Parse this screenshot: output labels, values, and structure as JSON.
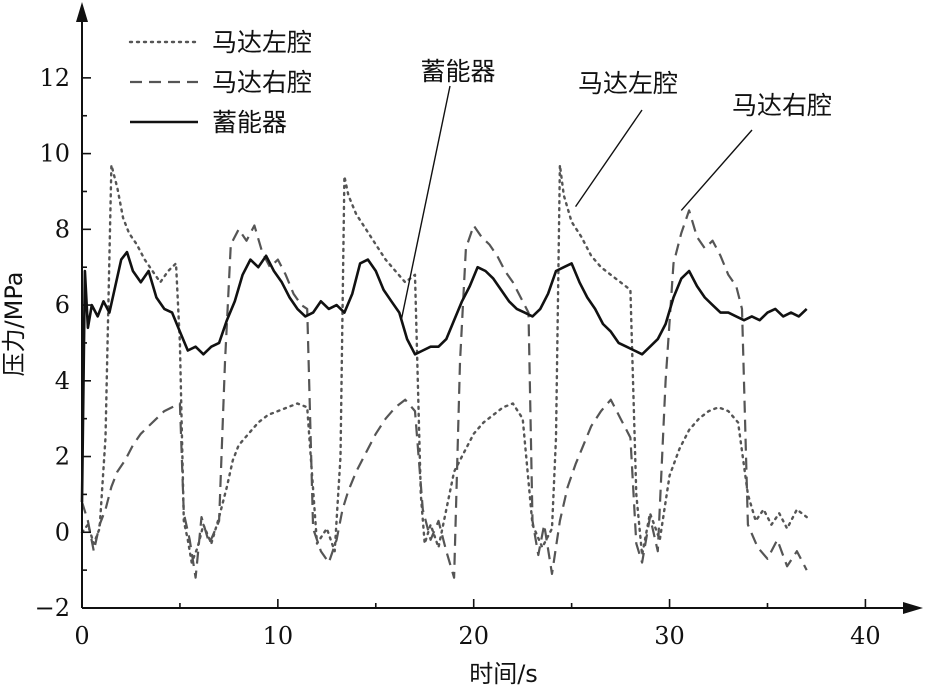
{
  "chart_data": {
    "type": "line",
    "xlabel": "时间/s",
    "ylabel": "压力/MPa",
    "xlim": [
      0,
      41
    ],
    "ylim": [
      -2,
      13
    ],
    "xticks": [
      0,
      10,
      20,
      30,
      40
    ],
    "yticks": [
      -2,
      0,
      2,
      4,
      6,
      8,
      10,
      12
    ],
    "legend_position": "top-left",
    "series": [
      {
        "name": "马达左腔",
        "style": "dotted",
        "color": "#555555",
        "x": [
          0,
          0.3,
          0.6,
          0.9,
          1.2,
          1.5,
          1.8,
          2.1,
          2.4,
          2.8,
          3.2,
          3.6,
          4.0,
          4.4,
          4.8,
          5.0,
          5.2,
          5.4,
          5.6,
          5.9,
          6.2,
          6.6,
          7.0,
          7.4,
          7.7,
          8.0,
          8.5,
          9.0,
          9.5,
          10.0,
          10.5,
          11.0,
          11.5,
          12.0,
          12.5,
          12.9,
          13.2,
          13.4,
          13.6,
          14.0,
          14.5,
          15.0,
          15.5,
          16.0,
          16.5,
          17.0,
          17.3,
          17.5,
          17.8,
          18.2,
          18.6,
          19.0,
          19.5,
          20.0,
          20.5,
          21.0,
          21.5,
          22.0,
          22.5,
          23.0,
          23.5,
          24.0,
          24.2,
          24.4,
          24.6,
          25.0,
          25.5,
          26.0,
          26.5,
          27.0,
          27.5,
          28.0,
          28.3,
          28.6,
          29.0,
          29.5,
          30.0,
          30.5,
          31.0,
          31.5,
          32.0,
          32.5,
          33.0,
          33.5,
          34.0,
          34.4,
          34.8,
          35.2,
          35.6,
          36.0,
          36.5,
          37.0
        ],
        "y": [
          0,
          0.2,
          -0.3,
          0.1,
          2.5,
          9.7,
          9.1,
          8.3,
          7.9,
          7.6,
          7.2,
          6.9,
          6.6,
          6.9,
          7.1,
          5.0,
          0.3,
          -0.2,
          -0.8,
          -0.4,
          0.2,
          -0.3,
          0.4,
          1.2,
          1.9,
          2.3,
          2.6,
          2.9,
          3.1,
          3.2,
          3.3,
          3.4,
          3.3,
          -0.3,
          0.1,
          -0.5,
          2.0,
          9.4,
          8.9,
          8.4,
          8.0,
          7.6,
          7.2,
          6.9,
          6.6,
          6.8,
          1.0,
          -0.3,
          0.2,
          -0.4,
          0.6,
          1.6,
          2.1,
          2.6,
          2.9,
          3.1,
          3.3,
          3.4,
          3.0,
          0.2,
          -0.4,
          0.1,
          2.5,
          9.7,
          8.9,
          8.2,
          7.8,
          7.3,
          7.0,
          6.8,
          6.6,
          6.4,
          1.0,
          -0.6,
          0.5,
          -0.2,
          1.5,
          2.2,
          2.7,
          3.0,
          3.2,
          3.3,
          3.2,
          2.9,
          1.0,
          0.3,
          0.6,
          0.2,
          0.5,
          0.1,
          0.6,
          0.4
        ]
      },
      {
        "name": "马达右腔",
        "style": "dashed",
        "color": "#555555",
        "x": [
          0,
          0.3,
          0.6,
          0.9,
          1.2,
          1.5,
          1.8,
          2.2,
          2.6,
          3.0,
          3.4,
          3.8,
          4.2,
          4.6,
          5.0,
          5.2,
          5.5,
          5.8,
          6.1,
          6.5,
          7.0,
          7.3,
          7.6,
          8.0,
          8.4,
          8.8,
          9.2,
          9.6,
          10.0,
          10.4,
          10.8,
          11.2,
          11.5,
          11.8,
          12.2,
          12.6,
          13.0,
          13.3,
          13.6,
          14.0,
          14.5,
          15.0,
          15.5,
          16.0,
          16.5,
          17.0,
          17.4,
          17.8,
          18.2,
          18.6,
          19.0,
          19.3,
          19.6,
          20.0,
          20.4,
          20.8,
          21.2,
          21.6,
          22.0,
          22.4,
          22.8,
          23.0,
          23.3,
          23.6,
          24.0,
          24.4,
          24.8,
          25.2,
          25.6,
          26.0,
          26.5,
          27.0,
          27.5,
          28.0,
          28.3,
          28.6,
          29.0,
          29.4,
          29.8,
          30.2,
          30.6,
          31.0,
          31.4,
          31.8,
          32.2,
          32.6,
          33.0,
          33.4,
          33.7,
          34.0,
          34.5,
          35.0,
          35.5,
          36.0,
          36.5,
          37.0
        ],
        "y": [
          0.8,
          0.3,
          -0.5,
          0.2,
          0.6,
          1.2,
          1.6,
          1.9,
          2.3,
          2.6,
          2.8,
          3.0,
          3.2,
          3.3,
          3.4,
          0.5,
          -0.2,
          -1.2,
          0.4,
          -0.3,
          0.3,
          4.5,
          7.6,
          8.0,
          7.7,
          8.1,
          7.4,
          7.0,
          7.2,
          6.8,
          6.3,
          6.0,
          5.9,
          0.1,
          -0.5,
          -0.8,
          -0.2,
          0.6,
          1.1,
          1.6,
          2.1,
          2.6,
          3.0,
          3.3,
          3.5,
          3.2,
          0.6,
          -0.2,
          0.3,
          -0.5,
          -1.2,
          4.5,
          7.5,
          8.1,
          7.8,
          7.6,
          7.3,
          6.9,
          6.6,
          6.2,
          5.8,
          0.3,
          -0.6,
          0.2,
          -1.1,
          0.3,
          1.2,
          1.8,
          2.3,
          2.8,
          3.2,
          3.5,
          3.0,
          2.5,
          -0.3,
          -0.8,
          0.4,
          -0.5,
          4.0,
          7.1,
          7.9,
          8.5,
          7.8,
          7.5,
          7.7,
          7.3,
          6.8,
          6.5,
          5.9,
          0.2,
          -0.4,
          -0.7,
          -0.2,
          -0.9,
          -0.5,
          -1.0
        ]
      },
      {
        "name": "蓄能器",
        "style": "solid",
        "color": "#111111",
        "x": [
          0,
          0.15,
          0.3,
          0.5,
          0.8,
          1.1,
          1.4,
          1.7,
          2.0,
          2.3,
          2.6,
          3.0,
          3.4,
          3.8,
          4.2,
          4.6,
          5.0,
          5.4,
          5.8,
          6.2,
          6.6,
          7.0,
          7.4,
          7.8,
          8.2,
          8.6,
          9.0,
          9.4,
          9.8,
          10.2,
          10.6,
          11.0,
          11.4,
          11.8,
          12.2,
          12.6,
          13.0,
          13.4,
          13.8,
          14.2,
          14.6,
          15.0,
          15.4,
          15.8,
          16.2,
          16.6,
          17.0,
          17.4,
          17.8,
          18.2,
          18.6,
          19.0,
          19.4,
          19.8,
          20.2,
          20.6,
          21.0,
          21.4,
          21.8,
          22.2,
          22.6,
          23.0,
          23.4,
          23.8,
          24.2,
          24.6,
          25.0,
          25.4,
          25.8,
          26.2,
          26.6,
          27.0,
          27.4,
          27.8,
          28.2,
          28.6,
          29.0,
          29.4,
          29.8,
          30.2,
          30.6,
          31.0,
          31.4,
          31.8,
          32.2,
          32.6,
          33.0,
          33.4,
          33.8,
          34.2,
          34.6,
          35.0,
          35.4,
          35.8,
          36.2,
          36.6,
          37.0
        ],
        "y": [
          0.8,
          6.9,
          5.4,
          6.0,
          5.7,
          6.1,
          5.8,
          6.5,
          7.2,
          7.4,
          6.9,
          6.6,
          6.9,
          6.2,
          5.9,
          5.8,
          5.3,
          4.8,
          4.9,
          4.7,
          4.9,
          5.0,
          5.6,
          6.1,
          6.8,
          7.2,
          7.0,
          7.3,
          6.9,
          6.6,
          6.2,
          5.9,
          5.7,
          5.8,
          6.1,
          5.9,
          6.0,
          5.8,
          6.3,
          7.1,
          7.2,
          6.9,
          6.4,
          6.1,
          5.8,
          5.1,
          4.7,
          4.8,
          4.9,
          4.9,
          5.1,
          5.6,
          6.1,
          6.5,
          7.0,
          6.9,
          6.7,
          6.4,
          6.1,
          5.9,
          5.8,
          5.7,
          5.9,
          6.3,
          6.9,
          7.0,
          7.1,
          6.6,
          6.2,
          5.9,
          5.5,
          5.3,
          5.0,
          4.9,
          4.8,
          4.7,
          4.9,
          5.1,
          5.5,
          6.2,
          6.7,
          6.9,
          6.5,
          6.2,
          6.0,
          5.8,
          5.8,
          5.7,
          5.6,
          5.7,
          5.6,
          5.8,
          5.9,
          5.7,
          5.8,
          5.7,
          5.9
        ]
      }
    ],
    "annotations": [
      {
        "text": "蓄能器",
        "x": 16.3,
        "y": 5.6
      },
      {
        "text": "马达左腔",
        "x": 25.2,
        "y": 8.6
      },
      {
        "text": "马达右腔",
        "x": 30.6,
        "y": 8.5
      }
    ]
  }
}
